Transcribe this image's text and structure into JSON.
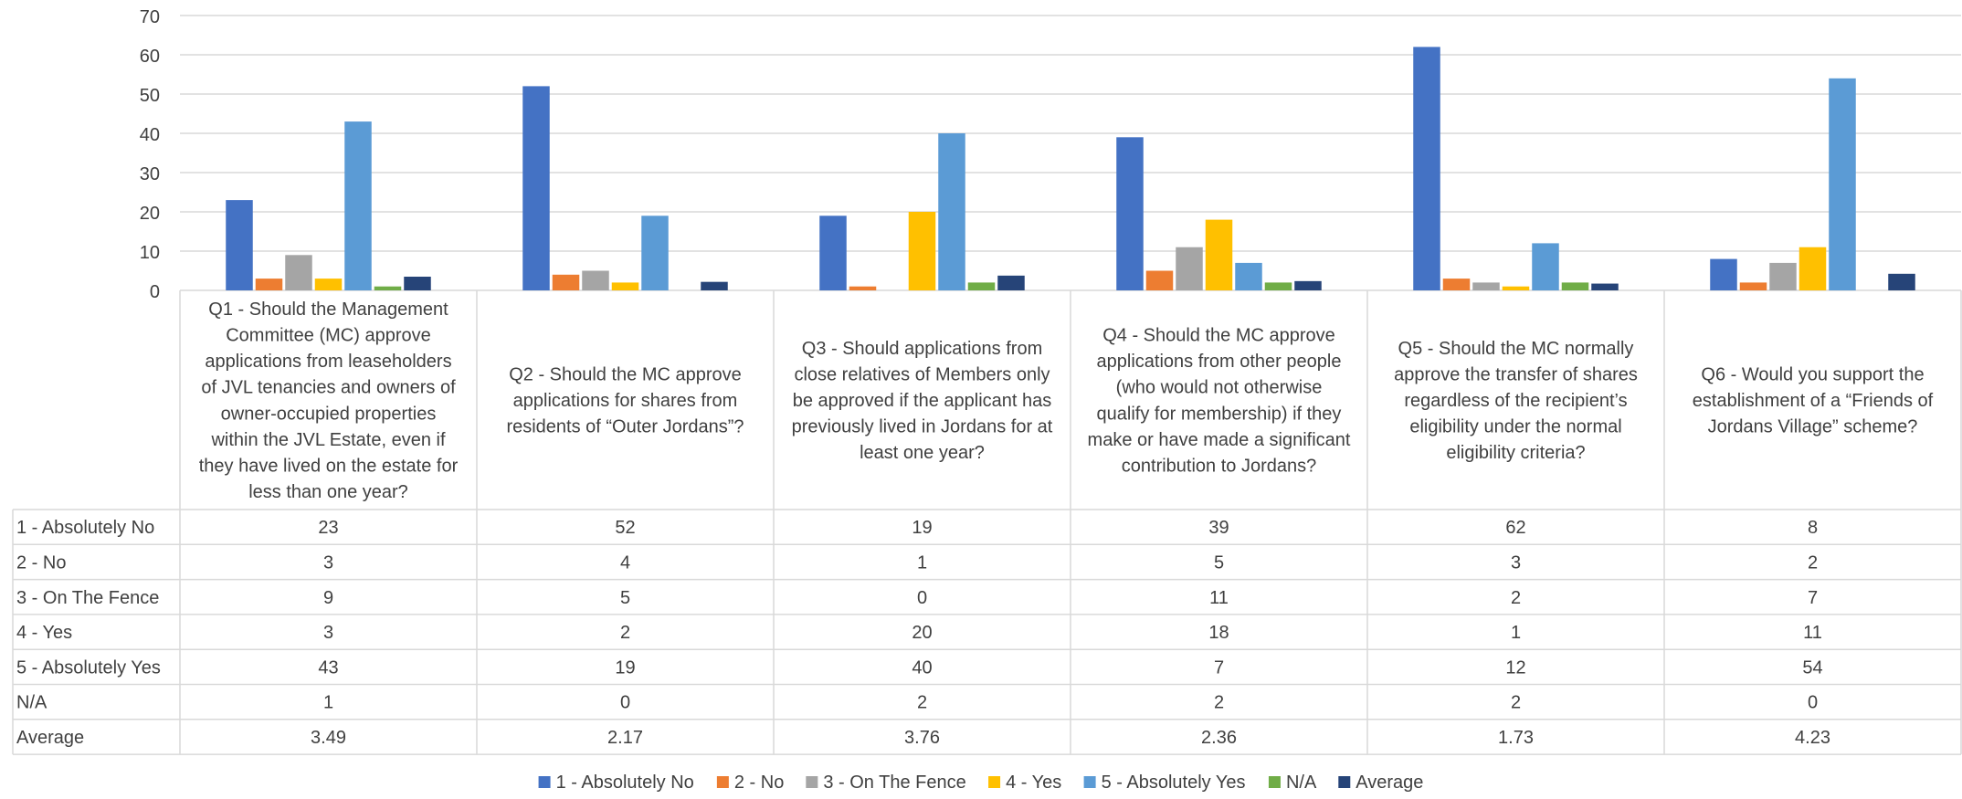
{
  "chart_data": {
    "type": "bar",
    "title": "",
    "xlabel": "",
    "ylabel": "",
    "ylim": [
      0,
      70
    ],
    "y_ticks": [
      "0",
      "10",
      "20",
      "30",
      "40",
      "50",
      "60",
      "70"
    ],
    "grid": true,
    "legend_position": "bottom",
    "data_table": true,
    "categories": [
      "Q1 - Should the Management Committee (MC) approve applications from leaseholders of JVL tenancies and owners of owner-occupied properties within the JVL Estate, even if they have lived on the estate for less than one year?",
      "Q2 - Should the MC approve applications for shares from residents of “Outer Jordans”?",
      "Q3 - Should applications from close relatives of Members only be approved if the applicant has previously lived in Jordans for at least one year?",
      "Q4 - Should the MC approve applications from other people (who would not otherwise qualify for membership) if they make or have made a significant contribution to Jordans?",
      "Q5 - Should the MC normally approve the transfer of shares regardless of the recipient’s eligibility under the normal eligibility criteria?",
      "Q6 - Would you support the establishment of a “Friends of Jordans Village” scheme?"
    ],
    "category_lines": [
      [
        "Q1 - Should the Management",
        "Committee (MC) approve",
        "applications from leaseholders",
        "of JVL tenancies and owners of",
        "owner-occupied properties",
        "within the JVL Estate, even if",
        "they have lived on the estate for",
        "less than one year?"
      ],
      [
        "Q2 - Should the MC approve",
        "applications for shares from",
        "residents of “Outer Jordans”?"
      ],
      [
        "Q3 - Should applications from",
        "close relatives of Members only",
        "be approved if the applicant has",
        "previously lived in Jordans for at",
        "least one year?"
      ],
      [
        "Q4 - Should the MC approve",
        "applications from other people",
        "(who would not otherwise",
        "qualify for membership) if they",
        "make or have made a significant",
        "contribution to Jordans?"
      ],
      [
        "Q5 - Should the MC normally",
        "approve the transfer of shares",
        "regardless of the recipient’s",
        "eligibility under the normal",
        "eligibility criteria?"
      ],
      [
        "Q6 - Would you support the",
        "establishment of a “Friends of",
        "Jordans Village” scheme?"
      ]
    ],
    "series": [
      {
        "name": "1 - Absolutely No",
        "color": "#4472c4",
        "values": [
          23,
          52,
          19,
          39,
          62,
          8
        ],
        "labels": [
          "23",
          "52",
          "19",
          "39",
          "62",
          "8"
        ]
      },
      {
        "name": "2 - No",
        "color": "#ed7d31",
        "values": [
          3,
          4,
          1,
          5,
          3,
          2
        ],
        "labels": [
          "3",
          "4",
          "1",
          "5",
          "3",
          "2"
        ]
      },
      {
        "name": "3 - On The Fence",
        "color": "#a5a5a5",
        "values": [
          9,
          5,
          0,
          11,
          2,
          7
        ],
        "labels": [
          "9",
          "5",
          "0",
          "11",
          "2",
          "7"
        ]
      },
      {
        "name": "4 - Yes",
        "color": "#ffc000",
        "values": [
          3,
          2,
          20,
          18,
          1,
          11
        ],
        "labels": [
          "3",
          "2",
          "20",
          "18",
          "1",
          "11"
        ]
      },
      {
        "name": "5 - Absolutely Yes",
        "color": "#5b9bd5",
        "values": [
          43,
          19,
          40,
          7,
          12,
          54
        ],
        "labels": [
          "43",
          "19",
          "40",
          "7",
          "12",
          "54"
        ]
      },
      {
        "name": "N/A",
        "color": "#70ad47",
        "values": [
          1,
          0,
          2,
          2,
          2,
          0
        ],
        "labels": [
          "1",
          "0",
          "2",
          "2",
          "2",
          "0"
        ]
      },
      {
        "name": "Average",
        "color": "#264478",
        "values": [
          3.49,
          2.17,
          3.76,
          2.36,
          1.73,
          4.23
        ],
        "labels": [
          "3.49",
          "2.17",
          "3.76",
          "2.36",
          "1.73",
          "4.23"
        ]
      }
    ]
  }
}
